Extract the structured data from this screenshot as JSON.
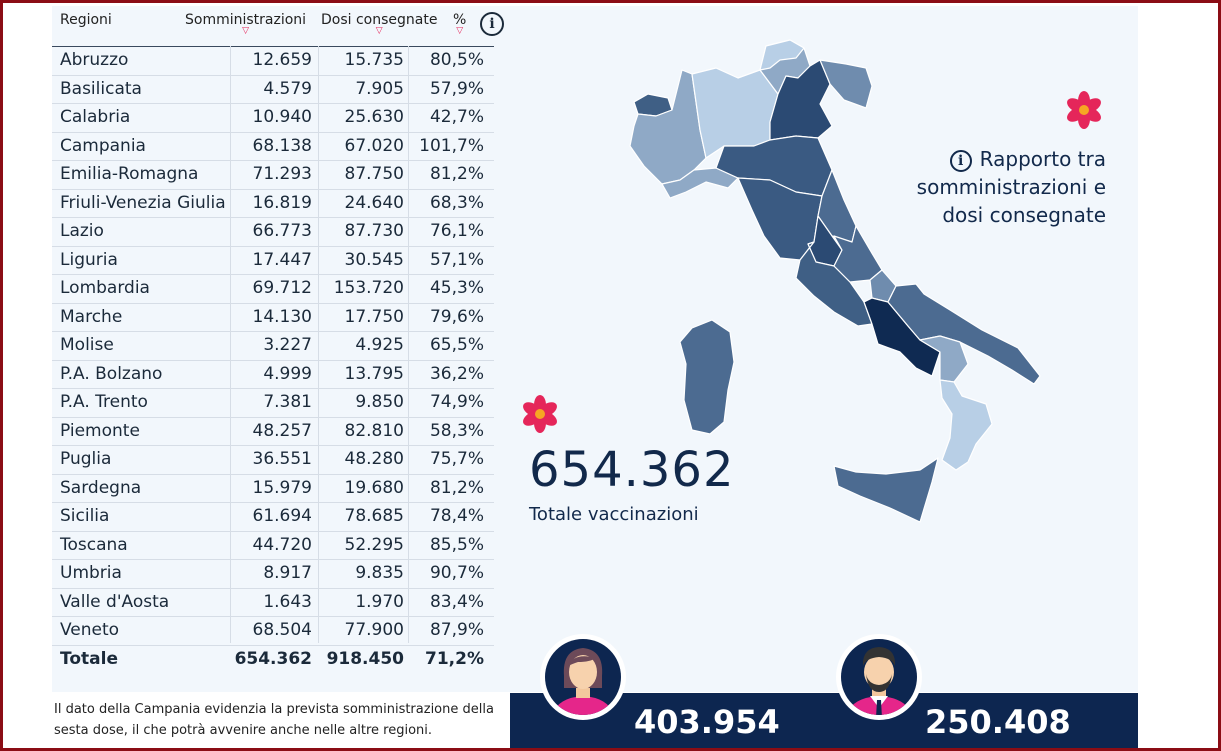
{
  "table": {
    "headers": {
      "region": "Regioni",
      "administered": "Somministrazioni",
      "delivered": "Dosi consegnate",
      "pct": "%"
    },
    "rows": [
      [
        "Abruzzo",
        "12.659",
        "15.735",
        "80,5%"
      ],
      [
        "Basilicata",
        "4.579",
        "7.905",
        "57,9%"
      ],
      [
        "Calabria",
        "10.940",
        "25.630",
        "42,7%"
      ],
      [
        "Campania",
        "68.138",
        "67.020",
        "101,7%"
      ],
      [
        "Emilia-Romagna",
        "71.293",
        "87.750",
        "81,2%"
      ],
      [
        "Friuli-Venezia Giulia",
        "16.819",
        "24.640",
        "68,3%"
      ],
      [
        "Lazio",
        "66.773",
        "87.730",
        "76,1%"
      ],
      [
        "Liguria",
        "17.447",
        "30.545",
        "57,1%"
      ],
      [
        "Lombardia",
        "69.712",
        "153.720",
        "45,3%"
      ],
      [
        "Marche",
        "14.130",
        "17.750",
        "79,6%"
      ],
      [
        "Molise",
        "3.227",
        "4.925",
        "65,5%"
      ],
      [
        "P.A. Bolzano",
        "4.999",
        "13.795",
        "36,2%"
      ],
      [
        "P.A. Trento",
        "7.381",
        "9.850",
        "74,9%"
      ],
      [
        "Piemonte",
        "48.257",
        "82.810",
        "58,3%"
      ],
      [
        "Puglia",
        "36.551",
        "48.280",
        "75,7%"
      ],
      [
        "Sardegna",
        "15.979",
        "19.680",
        "81,2%"
      ],
      [
        "Sicilia",
        "61.694",
        "78.685",
        "78,4%"
      ],
      [
        "Toscana",
        "44.720",
        "52.295",
        "85,5%"
      ],
      [
        "Umbria",
        "8.917",
        "9.835",
        "90,7%"
      ],
      [
        "Valle d'Aosta",
        "1.643",
        "1.970",
        "83,4%"
      ],
      [
        "Veneto",
        "68.504",
        "77.900",
        "87,9%"
      ]
    ],
    "total": [
      "Totale",
      "654.362",
      "918.450",
      "71,2%"
    ]
  },
  "note": "Il dato della Campania evidenzia la prevista somministrazione della sesta dose, il che potrà avvenire anche nelle altre regioni.",
  "summary": {
    "total_value": "654.362",
    "total_label": "Totale vaccinazioni"
  },
  "ratio_info": {
    "line1": "Rapporto tra",
    "line2": "somministrazioni e",
    "line3": "dosi consegnate"
  },
  "gender": {
    "female_value": "403.954",
    "male_value": "250.408"
  },
  "icons": {
    "info": "info-icon",
    "sort": "sort-down-icon",
    "flower": "flower-icon",
    "female": "female-avatar-icon",
    "male": "male-avatar-icon"
  },
  "colors": {
    "frame": "#8b0d15",
    "navy": "#0d2650",
    "accent": "#e5265a",
    "map_dark": "#1d3a62",
    "map_light": "#b8cfe6"
  }
}
